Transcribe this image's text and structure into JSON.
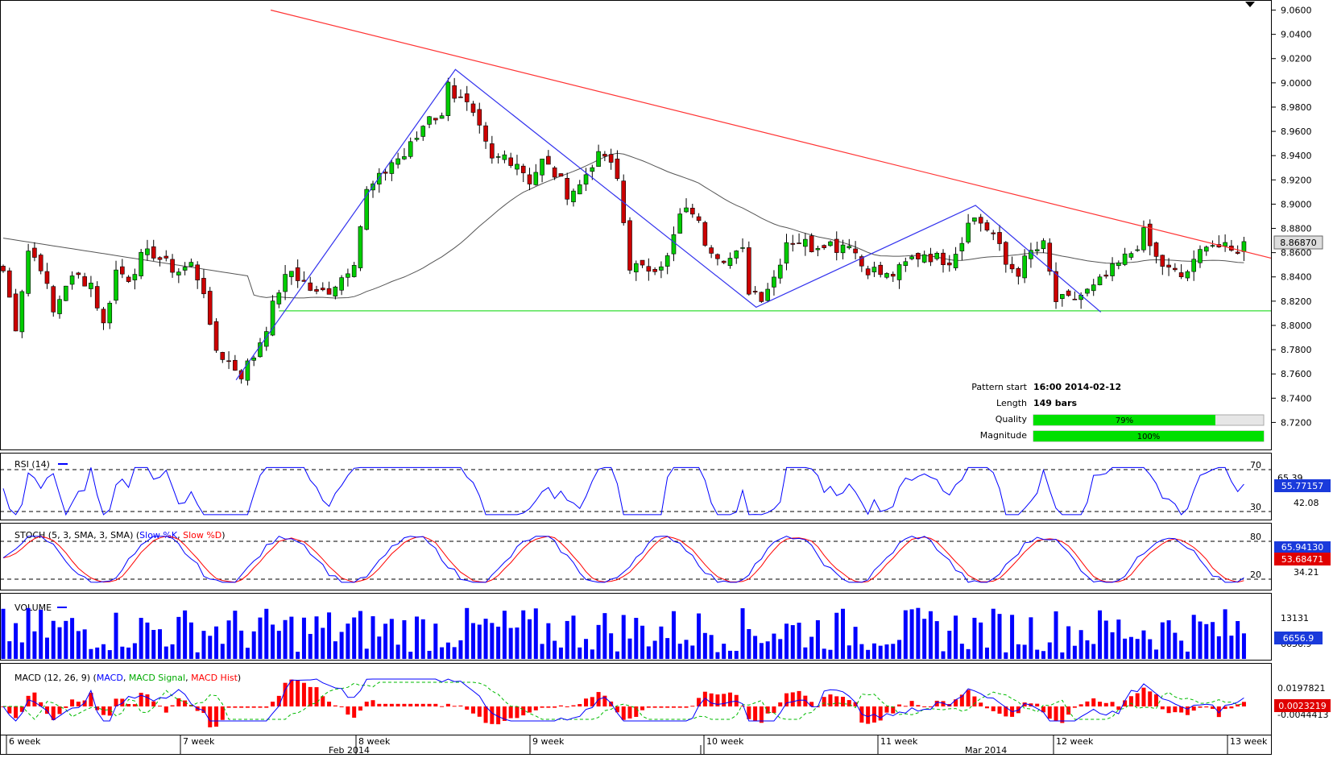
{
  "colors": {
    "up": "#00cc00",
    "down": "#cc0000",
    "trendline": "#ff3333",
    "support": "#33dd33",
    "pattern": "#3333ee",
    "sma": "#555555",
    "blue": "#0000ff",
    "red": "#ff0000",
    "quality_bar": "#00e000",
    "price_tag": "#dddddd",
    "indicator_tag": "#1a3adb",
    "red_tag": "#e00000"
  },
  "price_axis": {
    "ticks": [
      "9.0600",
      "9.0400",
      "9.0200",
      "9.0000",
      "8.9800",
      "8.9600",
      "8.9400",
      "8.9200",
      "8.9000",
      "8.8800",
      "8.8600",
      "8.8400",
      "8.8200",
      "8.8000",
      "8.7800",
      "8.7600",
      "8.7400",
      "8.7200"
    ],
    "current_price": "8.86870",
    "range": [
      8.705,
      9.063
    ]
  },
  "info": {
    "pattern_start_label": "Pattern start",
    "pattern_start_value": "16:00 2014-02-12",
    "length_label": "Length",
    "length_value": "149 bars",
    "quality_label": "Quality",
    "quality_value": "79%",
    "quality_fraction": 0.79,
    "magnitude_label": "Magnitude",
    "magnitude_value": "100%",
    "magnitude_fraction": 1.0
  },
  "rsi": {
    "label": "RSI (14)",
    "level_high": "70",
    "level_low": "30",
    "tick_label": "65.39",
    "tick_label2": "42.08",
    "current": "55.77157"
  },
  "stoch": {
    "label_prefix": "STOCH (5, 3, SMA, 3, SMA) (",
    "k_label": "Slow %K",
    "separator": ", ",
    "d_label": "Slow %D",
    "suffix": ")",
    "level_high": "80",
    "level_low": "20",
    "tick_label": "34.21",
    "current_k": "65.94130",
    "current_d": "53.68471"
  },
  "volume": {
    "label": "VOLUME",
    "tick_label": "13131",
    "tick_label2": "6656.9",
    "current": "6656.9"
  },
  "macd": {
    "label_prefix": "MACD (12, 26, 9) (",
    "macd_label": "MACD",
    "separator": ", ",
    "signal_label": "MACD Signal",
    "hist_label": "MACD Hist",
    "suffix": ")",
    "tick_label": "0.0197821",
    "tick_label2": "-0.0044413",
    "current": "0.0023219"
  },
  "time_axis": {
    "weeks": [
      "6 week",
      "7 week",
      "8 week",
      "9 week",
      "10 week",
      "11 week",
      "12 week",
      "13 week"
    ],
    "months": [
      "Feb 2014",
      "Mar 2014"
    ]
  },
  "chart_data": {
    "type": "candlestick",
    "instrument_price_range": [
      8.705,
      9.063
    ],
    "pattern": "descending triangle",
    "pattern_points": [
      {
        "bar": 0,
        "price": 9.06
      },
      {
        "bar": 36,
        "price": 8.755
      },
      {
        "bar": 71,
        "price": 9.011
      },
      {
        "bar": 119,
        "price": 8.815
      },
      {
        "bar": 154,
        "price": 8.899
      },
      {
        "bar": 174,
        "price": 8.811
      }
    ],
    "resistance_line": [
      {
        "bar": 36,
        "price": 9.06
      },
      {
        "bar": 187,
        "price": 8.855
      }
    ],
    "support_level": 8.812,
    "close_path": [
      [
        0,
        8.845
      ],
      [
        2,
        8.8
      ],
      [
        4,
        8.862
      ],
      [
        6,
        8.85
      ],
      [
        8,
        8.81
      ],
      [
        10,
        8.835
      ],
      [
        12,
        8.84
      ],
      [
        14,
        8.835
      ],
      [
        16,
        8.8
      ],
      [
        18,
        8.845
      ],
      [
        20,
        8.84
      ],
      [
        22,
        8.855
      ],
      [
        24,
        8.86
      ],
      [
        26,
        8.85
      ],
      [
        28,
        8.845
      ],
      [
        30,
        8.85
      ],
      [
        32,
        8.83
      ],
      [
        33,
        8.795
      ],
      [
        34,
        8.78
      ],
      [
        36,
        8.77
      ],
      [
        38,
        8.76
      ],
      [
        40,
        8.775
      ],
      [
        42,
        8.8
      ],
      [
        44,
        8.83
      ],
      [
        46,
        8.845
      ],
      [
        48,
        8.835
      ],
      [
        50,
        8.825
      ],
      [
        52,
        8.83
      ],
      [
        54,
        8.84
      ],
      [
        56,
        8.855
      ],
      [
        58,
        8.91
      ],
      [
        60,
        8.92
      ],
      [
        62,
        8.935
      ],
      [
        64,
        8.94
      ],
      [
        66,
        8.955
      ],
      [
        68,
        8.975
      ],
      [
        70,
        8.97
      ],
      [
        71,
        9.005
      ],
      [
        72,
        8.99
      ],
      [
        74,
        8.98
      ],
      [
        76,
        8.96
      ],
      [
        78,
        8.935
      ],
      [
        80,
        8.94
      ],
      [
        82,
        8.935
      ],
      [
        84,
        8.92
      ],
      [
        86,
        8.935
      ],
      [
        88,
        8.925
      ],
      [
        90,
        8.91
      ],
      [
        92,
        8.915
      ],
      [
        94,
        8.935
      ],
      [
        96,
        8.94
      ],
      [
        98,
        8.92
      ],
      [
        100,
        8.85
      ],
      [
        102,
        8.845
      ],
      [
        104,
        8.85
      ],
      [
        106,
        8.855
      ],
      [
        108,
        8.89
      ],
      [
        110,
        8.895
      ],
      [
        112,
        8.87
      ],
      [
        114,
        8.86
      ],
      [
        116,
        8.855
      ],
      [
        118,
        8.86
      ],
      [
        119,
        8.83
      ],
      [
        121,
        8.825
      ],
      [
        123,
        8.84
      ],
      [
        125,
        8.87
      ],
      [
        127,
        8.87
      ],
      [
        129,
        8.865
      ],
      [
        131,
        8.87
      ],
      [
        133,
        8.865
      ],
      [
        135,
        8.87
      ],
      [
        137,
        8.85
      ],
      [
        139,
        8.845
      ],
      [
        141,
        8.84
      ],
      [
        143,
        8.845
      ],
      [
        145,
        8.855
      ],
      [
        147,
        8.86
      ],
      [
        149,
        8.855
      ],
      [
        151,
        8.855
      ],
      [
        153,
        8.87
      ],
      [
        154,
        8.89
      ],
      [
        156,
        8.885
      ],
      [
        158,
        8.875
      ],
      [
        160,
        8.85
      ],
      [
        162,
        8.845
      ],
      [
        164,
        8.86
      ],
      [
        166,
        8.865
      ],
      [
        168,
        8.82
      ],
      [
        170,
        8.82
      ],
      [
        172,
        8.825
      ],
      [
        174,
        8.83
      ],
      [
        176,
        8.84
      ],
      [
        178,
        8.85
      ],
      [
        180,
        8.86
      ],
      [
        182,
        8.875
      ],
      [
        184,
        8.855
      ],
      [
        186,
        8.845
      ],
      [
        188,
        8.84
      ],
      [
        190,
        8.85
      ],
      [
        192,
        8.87
      ],
      [
        194,
        8.865
      ],
      [
        196,
        8.86
      ],
      [
        198,
        8.867
      ]
    ]
  }
}
